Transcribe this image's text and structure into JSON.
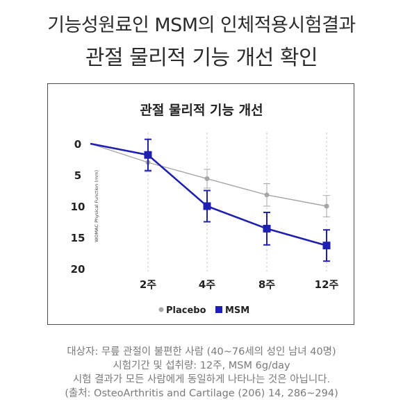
{
  "header": {
    "line1": "기능성원료인 MSM의 인체적용시험결과",
    "line2": "관절 물리적 기능 개선 확인"
  },
  "chart_data": {
    "type": "line",
    "title": "관절 물리적 기능 개선",
    "ylabel": "WOMAC Physical Function (mm)",
    "xlabel": "",
    "x": [
      "",
      "2주",
      "4주",
      "8주",
      "12주"
    ],
    "ylim": [
      0,
      20
    ],
    "y_inverted": true,
    "y_ticks": [
      0,
      5,
      10,
      15,
      20
    ],
    "grid": "vertical dashed",
    "legend_position": "bottom-center",
    "series": [
      {
        "name": "Placebo",
        "color": "#a6a6a6",
        "marker": "circle",
        "values": [
          0,
          3.0,
          5.6,
          8.2,
          10.0
        ],
        "error": [
          0,
          1.5,
          1.5,
          1.8,
          1.7
        ]
      },
      {
        "name": "MSM",
        "color": "#1f1fb0",
        "marker": "square",
        "values": [
          0,
          1.8,
          10.0,
          13.6,
          16.3
        ],
        "error": [
          0,
          2.5,
          2.5,
          2.6,
          2.5
        ]
      }
    ]
  },
  "footer": {
    "line1": "대상자: 무릎 관절이 불편한 사람 (40~76세의 성인 남녀 40명)",
    "line2": "시험기간 및 섭취량: 12주, MSM 6g/day",
    "line3": "시험 결과가 모든 사람에게 동일하게 나타나는 것은 아닙니다.",
    "line4": "(출처: OsteoArthritis and Cartilage (206) 14, 286~294)"
  }
}
